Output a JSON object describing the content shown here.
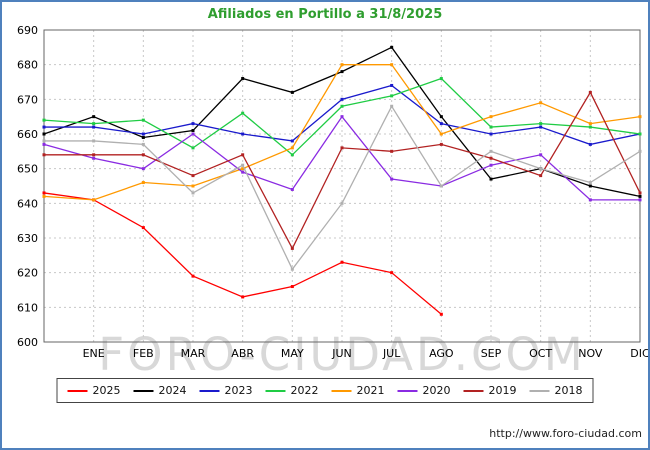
{
  "title": "Afiliados en Portillo a 31/8/2025",
  "watermark": "FORO-CIUDAD.COM",
  "footer": {
    "url": "http://www.foro-ciudad.com"
  },
  "colors": {
    "title": "#2f9e2f",
    "grid": "#c8c8c8",
    "axis": "#666666",
    "watermark": "#cccccc",
    "frame": "#4f81bd",
    "tick_text": "#000000"
  },
  "chart_data": {
    "type": "line",
    "title": "Afiliados en Portillo a 31/8/2025",
    "xlabel": "",
    "ylabel": "",
    "ylim": [
      600,
      690
    ],
    "ytick_step": 10,
    "grid": true,
    "legend_position": "bottom",
    "categories": [
      "",
      "ENE",
      "FEB",
      "MAR",
      "ABR",
      "MAY",
      "JUN",
      "JUL",
      "AGO",
      "SEP",
      "OCT",
      "NOV",
      "DIC"
    ],
    "series": [
      {
        "name": "2025",
        "color": "#ff0000",
        "values": [
          643,
          641,
          633,
          619,
          613,
          616,
          623,
          620,
          608,
          null,
          null,
          null,
          null
        ]
      },
      {
        "name": "2024",
        "color": "#000000",
        "values": [
          660,
          665,
          659,
          661,
          676,
          672,
          678,
          685,
          665,
          647,
          650,
          645,
          642
        ]
      },
      {
        "name": "2023",
        "color": "#1a1acc",
        "values": [
          662,
          662,
          660,
          663,
          660,
          658,
          670,
          674,
          663,
          660,
          662,
          657,
          660
        ]
      },
      {
        "name": "2022",
        "color": "#1fcc44",
        "values": [
          664,
          663,
          664,
          656,
          666,
          654,
          668,
          671,
          676,
          662,
          663,
          662,
          660
        ]
      },
      {
        "name": "2021",
        "color": "#ff9900",
        "values": [
          642,
          641,
          646,
          645,
          650,
          656,
          680,
          680,
          660,
          665,
          669,
          663,
          665
        ]
      },
      {
        "name": "2020",
        "color": "#8a2be2",
        "values": [
          657,
          653,
          650,
          660,
          649,
          644,
          665,
          647,
          645,
          651,
          654,
          641,
          641
        ]
      },
      {
        "name": "2019",
        "color": "#b22222",
        "values": [
          654,
          654,
          654,
          648,
          654,
          627,
          656,
          655,
          657,
          653,
          648,
          672,
          643
        ]
      },
      {
        "name": "2018",
        "color": "#b0b0b0",
        "values": [
          658,
          658,
          657,
          643,
          651,
          621,
          640,
          668,
          645,
          655,
          650,
          646,
          655
        ]
      }
    ]
  }
}
